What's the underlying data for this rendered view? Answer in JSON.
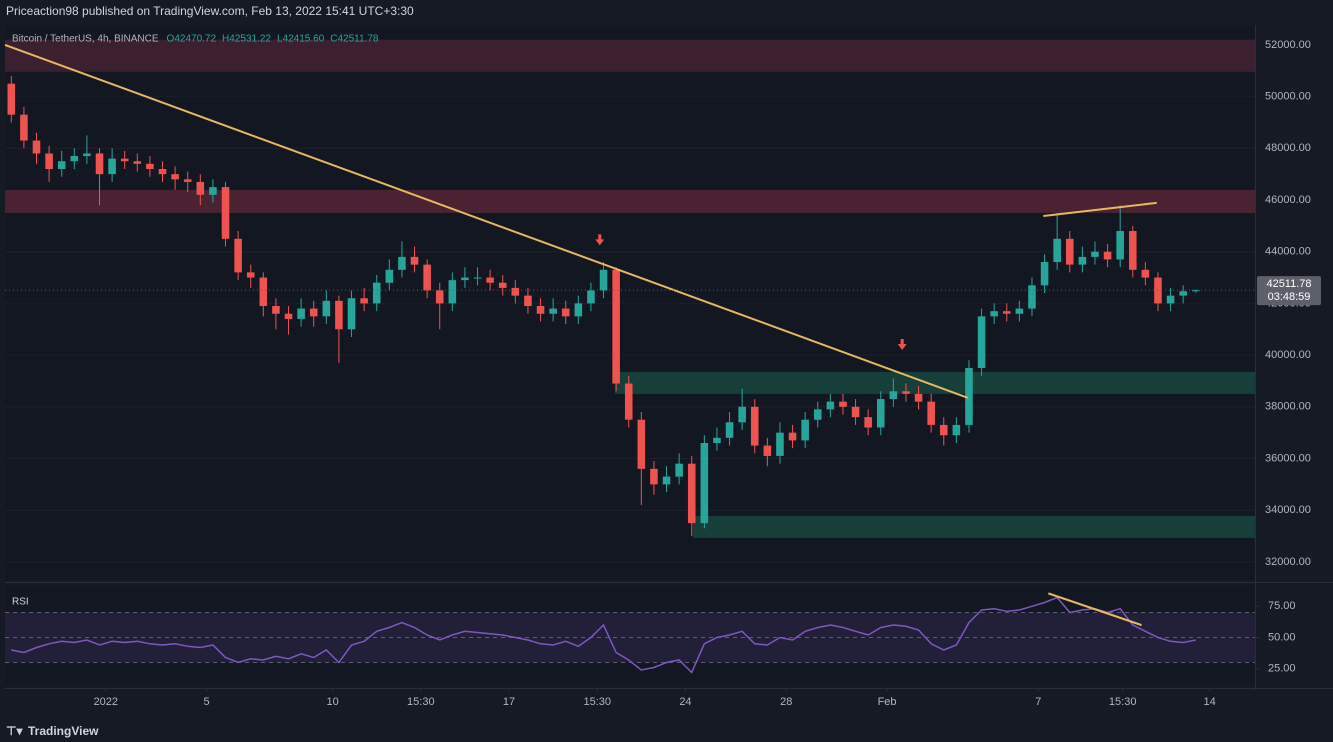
{
  "header": "Priceaction98 published on TradingView.com, Feb 13, 2022 15:41 UTC+3:30",
  "footer": "TradingView",
  "symbol": "Bitcoin / TetherUS, 4h, BINANCE",
  "ohlc_labels": [
    "O42470.72",
    "H42531.22",
    "L42415.60",
    "C42511.78"
  ],
  "last_price_label": "42511.78",
  "countdown": "03:48:59",
  "chart_data": [
    {
      "type": "candlestick",
      "up_color": "#26a69a",
      "down_color": "#ef5350",
      "xlim": [
        -0.5,
        98.7
      ],
      "ylim": [
        31300,
        52770
      ],
      "yticks": [
        {
          "value": 32000,
          "label": "32000.00"
        },
        {
          "value": 34000,
          "label": "34000.00"
        },
        {
          "value": 36000,
          "label": "36000.00"
        },
        {
          "value": 38000,
          "label": "38000.00"
        },
        {
          "value": 40000,
          "label": "40000.00"
        },
        {
          "value": 42000,
          "label": "42000.00"
        },
        {
          "value": 44000,
          "label": "44000.00"
        },
        {
          "value": 46000,
          "label": "46000.00"
        },
        {
          "value": 48000,
          "label": "48000.00"
        },
        {
          "value": 50000,
          "label": "50000.00"
        },
        {
          "value": 52000,
          "label": "52000.00"
        }
      ],
      "x": [
        0,
        1,
        2,
        3,
        4,
        5,
        6,
        7,
        8,
        9,
        10,
        11,
        12,
        13,
        14,
        15,
        16,
        17,
        18,
        19,
        20,
        21,
        22,
        23,
        24,
        25,
        26,
        27,
        28,
        29,
        30,
        31,
        32,
        33,
        34,
        35,
        36,
        37,
        38,
        39,
        40,
        41,
        42,
        43,
        44,
        45,
        46,
        47,
        48,
        49,
        50,
        51,
        52,
        53,
        54,
        55,
        56,
        57,
        58,
        59,
        60,
        61,
        62,
        63,
        64,
        65,
        66,
        67,
        68,
        69,
        70,
        71,
        72,
        73,
        74,
        75,
        76,
        77,
        78,
        79,
        80,
        81,
        82,
        83,
        84,
        85,
        86,
        87,
        88,
        89,
        90,
        91,
        92,
        93,
        94
      ],
      "open": [
        50500,
        49300,
        48300,
        47800,
        47200,
        47500,
        47700,
        47800,
        47000,
        47600,
        47500,
        47400,
        47200,
        47000,
        46800,
        46700,
        46200,
        46500,
        44500,
        43200,
        43000,
        41900,
        41600,
        41400,
        41800,
        41500,
        42100,
        41000,
        42200,
        42000,
        42800,
        43300,
        43800,
        43500,
        42500,
        42000,
        42900,
        43000,
        43000,
        42800,
        42600,
        42300,
        41900,
        41600,
        41800,
        41500,
        42000,
        42500,
        43300,
        38900,
        37500,
        35600,
        35000,
        35300,
        35800,
        33500,
        36600,
        36800,
        37400,
        38000,
        36500,
        36100,
        37000,
        36700,
        37500,
        37900,
        38200,
        38000,
        37600,
        37200,
        38300,
        38600,
        38500,
        38200,
        37300,
        36900,
        37300,
        39500,
        41500,
        41700,
        41600,
        41800,
        42700,
        43600,
        44500,
        43500,
        43800,
        44000,
        43700,
        44800,
        43300,
        43000,
        42000,
        42300,
        42470.72
      ],
      "high": [
        50800,
        49600,
        48600,
        48100,
        47900,
        48000,
        48500,
        48000,
        48000,
        47900,
        47800,
        47700,
        47500,
        47300,
        47100,
        47000,
        46800,
        46700,
        44800,
        43500,
        43200,
        42200,
        41900,
        42200,
        42100,
        42500,
        42300,
        42500,
        42600,
        43100,
        43700,
        44400,
        44200,
        43700,
        42800,
        43200,
        43400,
        43400,
        43300,
        43100,
        42900,
        42600,
        42200,
        42200,
        42100,
        42300,
        42800,
        43600,
        43400,
        39200,
        37800,
        35900,
        35700,
        36200,
        36100,
        36900,
        37200,
        37800,
        38700,
        38300,
        36800,
        37400,
        37300,
        37800,
        38200,
        38500,
        38500,
        38300,
        37900,
        38600,
        39100,
        38900,
        38800,
        38500,
        37600,
        37600,
        39800,
        41800,
        42000,
        42000,
        42100,
        43000,
        43900,
        45500,
        44800,
        44200,
        44400,
        44300,
        45800,
        45000,
        43600,
        43200,
        42600,
        42700,
        42531.22
      ],
      "low": [
        49000,
        48000,
        47400,
        46700,
        46900,
        47200,
        47400,
        45800,
        46700,
        47200,
        47100,
        46900,
        46700,
        46400,
        46300,
        45800,
        45900,
        44200,
        42900,
        42600,
        41500,
        41000,
        40800,
        41100,
        41100,
        41200,
        39700,
        40700,
        41700,
        41700,
        42500,
        43000,
        43200,
        42200,
        41000,
        41700,
        42600,
        42700,
        42500,
        42300,
        42000,
        41600,
        41300,
        41300,
        41200,
        41200,
        41700,
        42200,
        38600,
        37200,
        34200,
        34600,
        34700,
        35000,
        33000,
        33300,
        36300,
        36500,
        37100,
        36200,
        35700,
        35800,
        36400,
        36400,
        37200,
        37600,
        37700,
        37300,
        36900,
        36900,
        38000,
        38200,
        37900,
        37000,
        36500,
        36600,
        37000,
        39200,
        41200,
        41300,
        41300,
        41500,
        42400,
        43300,
        43200,
        43200,
        43500,
        43400,
        43400,
        43000,
        42700,
        41700,
        41700,
        42000,
        42415.6
      ],
      "close": [
        49300,
        48300,
        47800,
        47200,
        47500,
        47700,
        47800,
        47000,
        47600,
        47500,
        47400,
        47200,
        47000,
        46800,
        46700,
        46200,
        46500,
        44500,
        43200,
        43000,
        41900,
        41600,
        41400,
        41800,
        41500,
        42100,
        41000,
        42200,
        42000,
        42800,
        43300,
        43800,
        43500,
        42500,
        42000,
        42900,
        43000,
        43000,
        42800,
        42600,
        42300,
        41900,
        41600,
        41800,
        41500,
        42000,
        42500,
        43300,
        38900,
        37500,
        35600,
        35000,
        35300,
        35800,
        33500,
        36600,
        36800,
        37400,
        38000,
        36500,
        36100,
        37000,
        36700,
        37500,
        37900,
        38200,
        38000,
        37600,
        37200,
        38300,
        38600,
        38500,
        38200,
        37300,
        36900,
        37300,
        39500,
        41500,
        41700,
        41600,
        41800,
        42700,
        43600,
        44500,
        43500,
        43800,
        44000,
        43700,
        44800,
        43300,
        43000,
        42000,
        42300,
        42470.72,
        42511.78
      ],
      "zones": [
        {
          "x": [
            -0.5,
            98.7
          ],
          "y": [
            50960,
            52200
          ],
          "color": "#3d2030"
        },
        {
          "x": [
            -0.5,
            98.7
          ],
          "y": [
            45500,
            46390
          ],
          "color": "#4a2232"
        },
        {
          "x": [
            47.9,
            98.7
          ],
          "y": [
            38500,
            39350
          ],
          "color": "#173f3a"
        },
        {
          "x": [
            54.1,
            98.7
          ],
          "y": [
            32930,
            33780
          ],
          "color": "#173f3a"
        }
      ],
      "lines": [
        {
          "x": [
            -0.5,
            75.9
          ],
          "y": [
            52000,
            38350
          ],
          "color": "#e8b75e"
        },
        {
          "x": [
            81.9,
            90.9
          ],
          "y": [
            45380,
            45890
          ],
          "color": "#e8b75e"
        }
      ],
      "markers": [
        {
          "x": 46.7,
          "y": 44400,
          "color": "#ef5350"
        },
        {
          "x": 70.7,
          "y": 40350,
          "color": "#ef5350"
        }
      ]
    },
    {
      "type": "line",
      "title": "RSI",
      "color": "#7e57c2",
      "band_color": "#221f38",
      "xlim": [
        -0.5,
        98.7
      ],
      "ylim": [
        12,
        92
      ],
      "yticks": [
        {
          "value": 25,
          "label": "25.00"
        },
        {
          "value": 50,
          "label": "50.00"
        },
        {
          "value": 75,
          "label": "75.00"
        }
      ],
      "levels": [
        30,
        50,
        70
      ],
      "xticks": [
        {
          "value": 7.5,
          "label": "2022"
        },
        {
          "value": 15.5,
          "label": "5"
        },
        {
          "value": 25.5,
          "label": "10"
        },
        {
          "value": 32.5,
          "label": "15:30"
        },
        {
          "value": 39.5,
          "label": "17"
        },
        {
          "value": 46.5,
          "label": "15:30"
        },
        {
          "value": 53.5,
          "label": "24"
        },
        {
          "value": 61.5,
          "label": "28"
        },
        {
          "value": 69.5,
          "label": "Feb"
        },
        {
          "value": 81.5,
          "label": "7"
        },
        {
          "value": 88.2,
          "label": "15:30"
        },
        {
          "value": 95.1,
          "label": "14"
        }
      ],
      "x": [
        0,
        1,
        2,
        3,
        4,
        5,
        6,
        7,
        8,
        9,
        10,
        11,
        12,
        13,
        14,
        15,
        16,
        17,
        18,
        19,
        20,
        21,
        22,
        23,
        24,
        25,
        26,
        27,
        28,
        29,
        30,
        31,
        32,
        33,
        34,
        35,
        36,
        37,
        38,
        39,
        40,
        41,
        42,
        43,
        44,
        45,
        46,
        47,
        48,
        49,
        50,
        51,
        52,
        53,
        54,
        55,
        56,
        57,
        58,
        59,
        60,
        61,
        62,
        63,
        64,
        65,
        66,
        67,
        68,
        69,
        70,
        71,
        72,
        73,
        74,
        75,
        76,
        77,
        78,
        79,
        80,
        81,
        82,
        83,
        84,
        85,
        86,
        87,
        88,
        89,
        90,
        91,
        92,
        93,
        94
      ],
      "values": [
        40,
        38,
        42,
        45,
        47,
        46,
        48,
        44,
        47,
        46,
        47,
        45,
        44,
        45,
        43,
        42,
        44,
        34,
        30,
        33,
        32,
        35,
        33,
        37,
        34,
        40,
        30,
        44,
        47,
        55,
        58,
        62,
        58,
        52,
        48,
        52,
        55,
        54,
        53,
        52,
        50,
        48,
        45,
        44,
        47,
        43,
        50,
        60,
        38,
        32,
        24,
        26,
        30,
        32,
        22,
        45,
        50,
        52,
        55,
        45,
        44,
        50,
        48,
        55,
        58,
        60,
        58,
        55,
        52,
        58,
        60,
        59,
        56,
        45,
        40,
        44,
        62,
        72,
        73,
        71,
        72,
        75,
        78,
        82,
        70,
        72,
        73,
        70,
        73,
        60,
        55,
        50,
        47,
        46,
        48
      ],
      "lines": [
        {
          "x": [
            82.3,
            89.7
          ],
          "y": [
            85.3,
            59.9
          ],
          "color": "#e8b75e"
        }
      ]
    }
  ]
}
